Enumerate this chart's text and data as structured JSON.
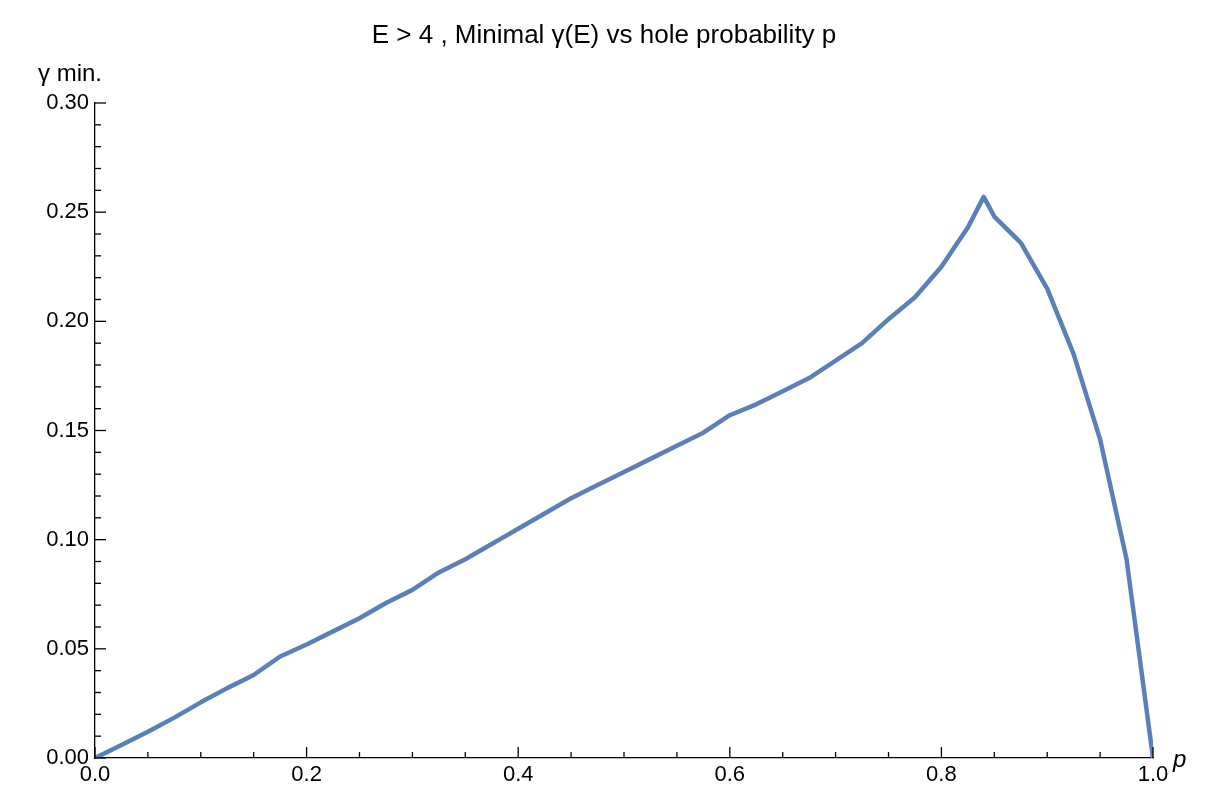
{
  "chart_data": {
    "type": "line",
    "title": "E > 4 , Minimal γ(E) vs hole probability p",
    "xlabel": "p",
    "ylabel": "γ min.",
    "x": [
      0,
      0.025,
      0.05,
      0.075,
      0.1,
      0.125,
      0.15,
      0.175,
      0.2,
      0.225,
      0.25,
      0.275,
      0.3,
      0.325,
      0.35,
      0.375,
      0.4,
      0.425,
      0.45,
      0.475,
      0.5,
      0.525,
      0.55,
      0.575,
      0.6,
      0.625,
      0.65,
      0.675,
      0.7,
      0.725,
      0.75,
      0.775,
      0.8,
      0.8125,
      0.825,
      0.84,
      0.85,
      0.875,
      0.9,
      0.925,
      0.95,
      0.975,
      1.0
    ],
    "series": [
      {
        "color": "#5b80b8",
        "values": [
          0,
          0.006,
          0.012,
          0.0185,
          0.0255,
          0.032,
          0.038,
          0.0465,
          0.052,
          0.058,
          0.064,
          0.071,
          0.077,
          0.085,
          0.091,
          0.098,
          0.105,
          0.112,
          0.119,
          0.125,
          0.131,
          0.137,
          0.143,
          0.149,
          0.157,
          0.162,
          0.168,
          0.174,
          0.182,
          0.19,
          0.201,
          0.211,
          0.225,
          0.234,
          0.243,
          0.257,
          0.248,
          0.236,
          0.215,
          0.185,
          0.146,
          0.091,
          0
        ]
      }
    ],
    "xlim": [
      0,
      1
    ],
    "ylim": [
      0,
      0.3
    ],
    "xticks": [
      {
        "value": 0,
        "label": "0.0"
      },
      {
        "value": 0.05,
        "label": null
      },
      {
        "value": 0.1,
        "label": null
      },
      {
        "value": 0.15,
        "label": null
      },
      {
        "value": 0.2,
        "label": "0.2"
      },
      {
        "value": 0.25,
        "label": null
      },
      {
        "value": 0.3,
        "label": null
      },
      {
        "value": 0.35,
        "label": null
      },
      {
        "value": 0.4,
        "label": "0.4"
      },
      {
        "value": 0.45,
        "label": null
      },
      {
        "value": 0.5,
        "label": null
      },
      {
        "value": 0.55,
        "label": null
      },
      {
        "value": 0.6,
        "label": "0.6"
      },
      {
        "value": 0.65,
        "label": null
      },
      {
        "value": 0.7,
        "label": null
      },
      {
        "value": 0.75,
        "label": null
      },
      {
        "value": 0.8,
        "label": "0.8"
      },
      {
        "value": 0.85,
        "label": null
      },
      {
        "value": 0.9,
        "label": null
      },
      {
        "value": 0.95,
        "label": null
      },
      {
        "value": 1,
        "label": "1.0"
      }
    ],
    "yticks": [
      {
        "value": 0,
        "label": "0.00"
      },
      {
        "value": 0.01,
        "label": null
      },
      {
        "value": 0.02,
        "label": null
      },
      {
        "value": 0.03,
        "label": null
      },
      {
        "value": 0.04,
        "label": null
      },
      {
        "value": 0.05,
        "label": "0.05"
      },
      {
        "value": 0.06,
        "label": null
      },
      {
        "value": 0.07,
        "label": null
      },
      {
        "value": 0.08,
        "label": null
      },
      {
        "value": 0.09,
        "label": null
      },
      {
        "value": 0.1,
        "label": "0.10"
      },
      {
        "value": 0.11,
        "label": null
      },
      {
        "value": 0.12,
        "label": null
      },
      {
        "value": 0.13,
        "label": null
      },
      {
        "value": 0.14,
        "label": null
      },
      {
        "value": 0.15,
        "label": "0.15"
      },
      {
        "value": 0.16,
        "label": null
      },
      {
        "value": 0.17,
        "label": null
      },
      {
        "value": 0.18,
        "label": null
      },
      {
        "value": 0.19,
        "label": null
      },
      {
        "value": 0.2,
        "label": "0.20"
      },
      {
        "value": 0.21,
        "label": null
      },
      {
        "value": 0.22,
        "label": null
      },
      {
        "value": 0.23,
        "label": null
      },
      {
        "value": 0.24,
        "label": null
      },
      {
        "value": 0.25,
        "label": "0.25"
      },
      {
        "value": 0.26,
        "label": null
      },
      {
        "value": 0.27,
        "label": null
      },
      {
        "value": 0.28,
        "label": null
      },
      {
        "value": 0.29,
        "label": null
      },
      {
        "value": 0.3,
        "label": "0.30"
      }
    ],
    "grid": false,
    "legend": false,
    "marker": "none",
    "line_style": "solid"
  }
}
